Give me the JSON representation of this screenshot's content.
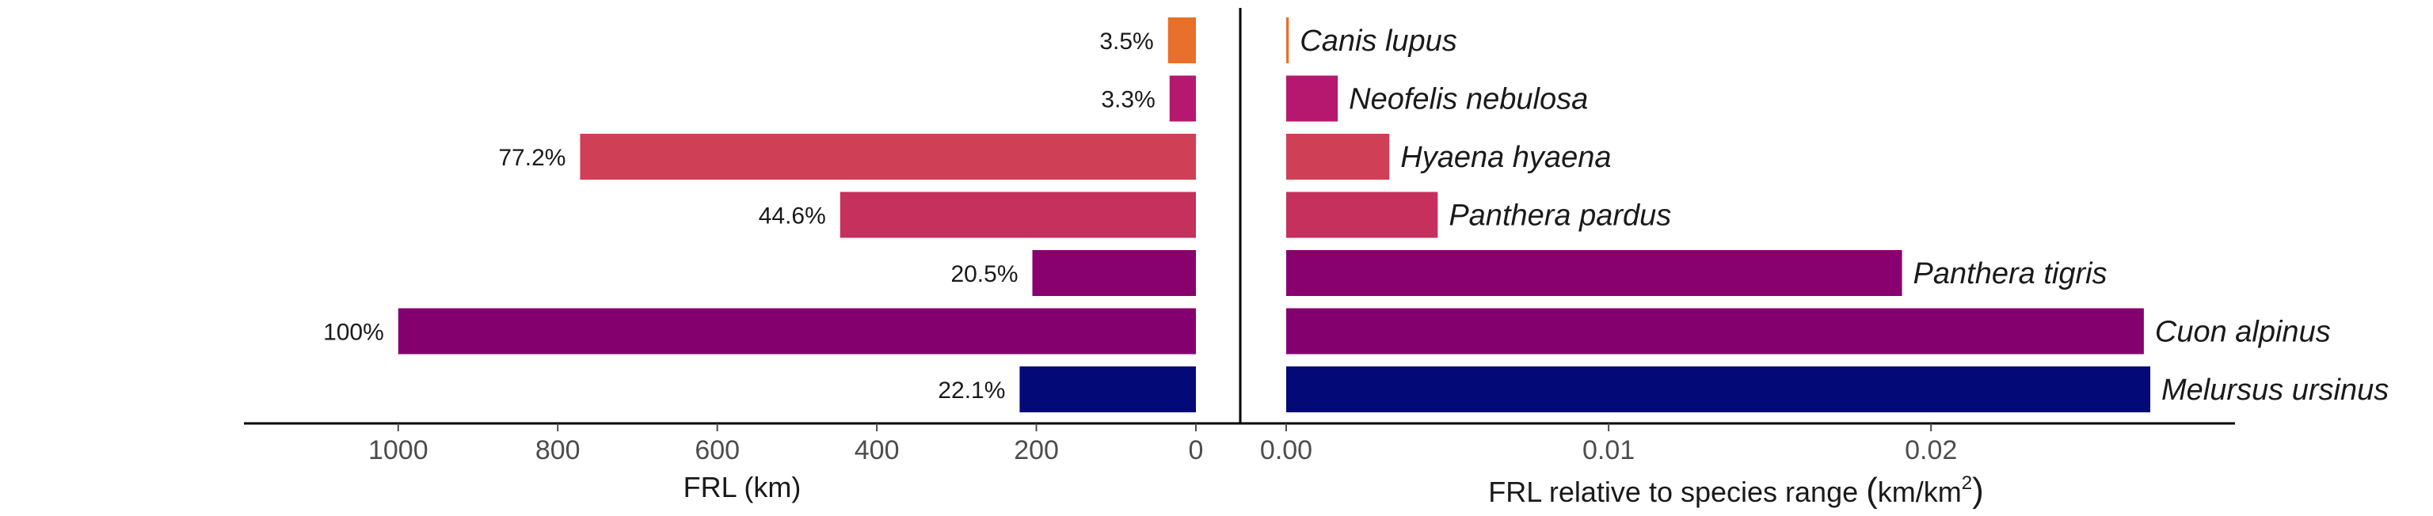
{
  "chart_data": [
    {
      "type": "bar",
      "orientation": "horizontal",
      "direction": "reversed",
      "xlabel": "FRL (km)",
      "xlim": [
        0,
        1140
      ],
      "ticks": [
        "1000",
        "800",
        "600",
        "400",
        "200",
        "0"
      ],
      "tick_values": [
        1000,
        800,
        600,
        400,
        200,
        0
      ],
      "categories": [
        "Canis lupus",
        "Neofelis nebulosa",
        "Hyaena hyaena",
        "Panthera pardus",
        "Panthera tigris",
        "Cuon alpinus",
        "Melursus ursinus"
      ],
      "values": [
        35,
        33,
        772,
        446,
        205,
        1000,
        221
      ],
      "data_labels": [
        "3.5%",
        "3.3%",
        "77.2%",
        "44.6%",
        "20.5%",
        "100%",
        "22.1%"
      ],
      "colors": [
        "#e8702a",
        "#b5186e",
        "#cf4056",
        "#c5305c",
        "#89006f",
        "#85006f",
        "#030a78"
      ]
    },
    {
      "type": "bar",
      "orientation": "horizontal",
      "xlabel_main": "FRL relative to species range ",
      "xlabel_unit": "km/km",
      "xlabel_sup": "2",
      "xlim": [
        0,
        0.0275
      ],
      "ticks": [
        "0.00",
        "0.01",
        "0.02"
      ],
      "tick_values": [
        0,
        0.01,
        0.02
      ],
      "categories": [
        "Canis lupus",
        "Neofelis nebulosa",
        "Hyaena hyaena",
        "Panthera pardus",
        "Panthera tigris",
        "Cuon alpinus",
        "Melursus ursinus"
      ],
      "values": [
        8e-05,
        0.0016,
        0.0032,
        0.0047,
        0.0191,
        0.0266,
        0.0268
      ],
      "colors": [
        "#e8702a",
        "#b5186e",
        "#cf4056",
        "#c5305c",
        "#89006f",
        "#85006f",
        "#030a78"
      ]
    }
  ]
}
